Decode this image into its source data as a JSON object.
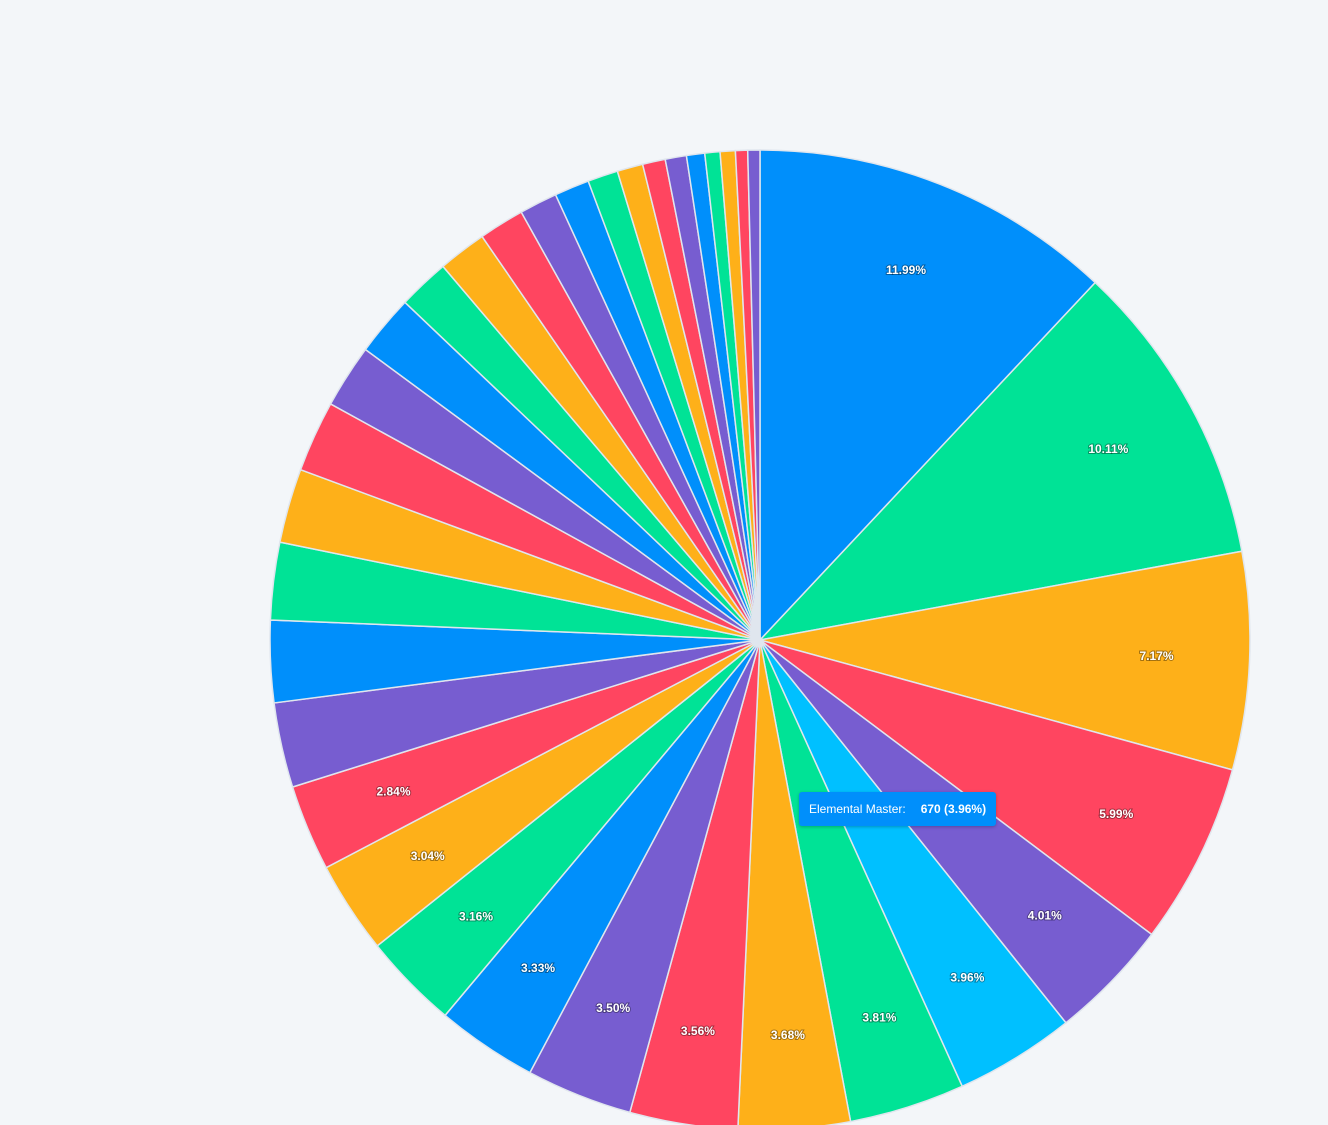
{
  "chart_data": {
    "type": "pie",
    "values": [
      11.99,
      10.11,
      7.17,
      5.99,
      4.01,
      3.96,
      3.81,
      3.68,
      3.56,
      3.5,
      3.33,
      3.16,
      3.04,
      2.84,
      2.8,
      2.7,
      2.55,
      2.45,
      2.35,
      2.1,
      2.0,
      1.7,
      1.6,
      1.5,
      1.25,
      1.15,
      1.0,
      0.85,
      0.75,
      0.7,
      0.6,
      0.5,
      0.5,
      0.4,
      0.4
    ],
    "value_labels": [
      "11.99%",
      "10.11%",
      "7.17%",
      "5.99%",
      "4.01%",
      "3.96%",
      "3.81%",
      "3.68%",
      "3.56%",
      "3.50%",
      "3.33%",
      "3.16%",
      "3.04%",
      "2.84%",
      null,
      null,
      null,
      null,
      null,
      null,
      null,
      null,
      null,
      null,
      null,
      null,
      null,
      null,
      null,
      null,
      null,
      null,
      null,
      null,
      null
    ],
    "colors": [
      "#008ffb",
      "#00e396",
      "#feb019",
      "#ff4560",
      "#775dd0",
      "#00c0ff",
      "#00e396",
      "#feb019",
      "#ff4560",
      "#775dd0",
      "#008ffb",
      "#00e396",
      "#feb019",
      "#ff4560",
      "#775dd0",
      "#008ffb",
      "#00e396",
      "#feb019",
      "#ff4560",
      "#775dd0",
      "#008ffb",
      "#00e396",
      "#feb019",
      "#ff4560",
      "#775dd0",
      "#008ffb",
      "#00e396",
      "#feb019",
      "#ff4560",
      "#775dd0",
      "#008ffb",
      "#00e396",
      "#feb019",
      "#ff4560",
      "#775dd0"
    ],
    "tooltip": {
      "name": "Elemental Master:",
      "text": "670 (3.96%)"
    }
  }
}
